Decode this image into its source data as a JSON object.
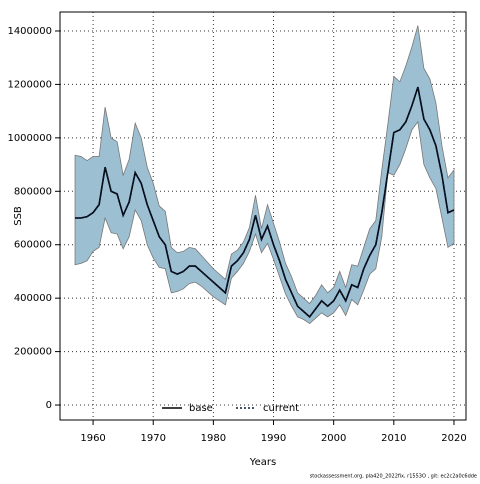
{
  "chart_data": {
    "type": "line",
    "xlabel": "Years",
    "ylabel": "SSB",
    "x": [
      1957,
      1958,
      1959,
      1960,
      1961,
      1962,
      1963,
      1964,
      1965,
      1966,
      1967,
      1968,
      1969,
      1970,
      1971,
      1972,
      1973,
      1974,
      1975,
      1976,
      1977,
      1978,
      1979,
      1980,
      1981,
      1982,
      1983,
      1984,
      1985,
      1986,
      1987,
      1988,
      1989,
      1990,
      1991,
      1992,
      1993,
      1994,
      1995,
      1996,
      1997,
      1998,
      1999,
      2000,
      2001,
      2002,
      2003,
      2004,
      2005,
      2006,
      2007,
      2008,
      2009,
      2010,
      2011,
      2012,
      2013,
      2014,
      2015,
      2016,
      2017,
      2018,
      2019,
      2020
    ],
    "series": [
      {
        "name": "base",
        "color": "#000000",
        "dash": false,
        "values": [
          700000,
          700000,
          705000,
          720000,
          750000,
          890000,
          800000,
          790000,
          710000,
          760000,
          870000,
          830000,
          750000,
          690000,
          630000,
          600000,
          500000,
          490000,
          500000,
          520000,
          520000,
          500000,
          480000,
          460000,
          440000,
          420000,
          520000,
          540000,
          570000,
          620000,
          710000,
          620000,
          670000,
          600000,
          540000,
          470000,
          420000,
          370000,
          350000,
          330000,
          360000,
          390000,
          370000,
          390000,
          430000,
          390000,
          450000,
          440000,
          510000,
          560000,
          600000,
          720000,
          870000,
          1020000,
          1030000,
          1060000,
          1120000,
          1190000,
          1070000,
          1030000,
          970000,
          860000,
          720000,
          730000
        ]
      },
      {
        "name": "current",
        "color": "#0a1a3a",
        "dash": true,
        "values": [
          700000,
          700000,
          705000,
          720000,
          750000,
          890000,
          800000,
          790000,
          710000,
          760000,
          870000,
          830000,
          750000,
          690000,
          630000,
          600000,
          500000,
          490000,
          500000,
          520000,
          520000,
          500000,
          480000,
          460000,
          440000,
          420000,
          520000,
          540000,
          570000,
          620000,
          710000,
          620000,
          670000,
          600000,
          540000,
          470000,
          420000,
          370000,
          350000,
          330000,
          360000,
          390000,
          370000,
          390000,
          430000,
          390000,
          450000,
          440000,
          510000,
          560000,
          600000,
          720000,
          870000,
          1020000,
          1030000,
          1060000,
          1120000,
          1190000,
          1070000,
          1030000,
          970000,
          860000,
          720000,
          730000
        ]
      }
    ],
    "band": {
      "color": "#9dbfd2",
      "upper": [
        935000,
        930000,
        915000,
        930000,
        930000,
        1115000,
        1000000,
        985000,
        860000,
        920000,
        1055000,
        1000000,
        890000,
        830000,
        745000,
        725000,
        590000,
        570000,
        575000,
        590000,
        585000,
        560000,
        535000,
        510000,
        490000,
        470000,
        565000,
        580000,
        610000,
        665000,
        785000,
        660000,
        750000,
        680000,
        610000,
        530000,
        480000,
        420000,
        400000,
        380000,
        410000,
        450000,
        420000,
        440000,
        500000,
        440000,
        525000,
        520000,
        590000,
        660000,
        690000,
        880000,
        1050000,
        1230000,
        1210000,
        1270000,
        1340000,
        1420000,
        1260000,
        1220000,
        1130000,
        970000,
        850000,
        880000
      ],
      "lower": [
        525000,
        530000,
        540000,
        575000,
        590000,
        700000,
        645000,
        640000,
        585000,
        630000,
        730000,
        690000,
        600000,
        550000,
        515000,
        510000,
        420000,
        425000,
        435000,
        455000,
        460000,
        445000,
        425000,
        405000,
        390000,
        375000,
        475000,
        500000,
        530000,
        575000,
        640000,
        570000,
        605000,
        545000,
        480000,
        415000,
        370000,
        330000,
        320000,
        305000,
        325000,
        345000,
        330000,
        345000,
        375000,
        335000,
        395000,
        375000,
        430000,
        490000,
        510000,
        630000,
        870000,
        860000,
        900000,
        960000,
        1030000,
        1060000,
        900000,
        850000,
        810000,
        700000,
        590000,
        605000
      ]
    },
    "xlim": [
      1954.5,
      2022
    ],
    "ylim": [
      -56000,
      1471000
    ],
    "xticks": [
      1960,
      1970,
      1980,
      1990,
      2000,
      2010,
      2020
    ],
    "yticks": [
      0,
      200000,
      400000,
      600000,
      800000,
      1000000,
      1200000,
      1400000
    ],
    "grid": true,
    "legend": "bottom",
    "footer": "stockassessment.org, pla420_2022fix, r1553O , git: ec2c2a0c6dde"
  }
}
